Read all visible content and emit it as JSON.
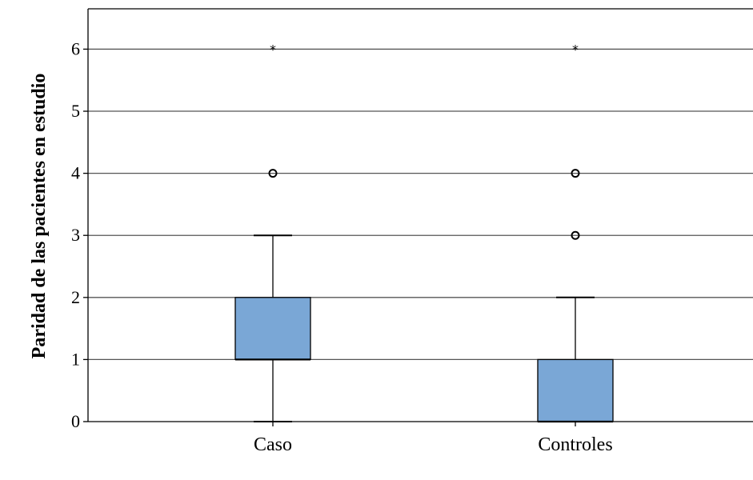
{
  "chart_data": {
    "type": "boxplot",
    "title": "",
    "xlabel": "",
    "ylabel": "Paridad de las pacientes en estudio",
    "ylim": [
      0,
      6.65
    ],
    "yticks": [
      0,
      1,
      2,
      3,
      4,
      5,
      6
    ],
    "grid": true,
    "categories": [
      "Caso",
      "Controles"
    ],
    "boxes": [
      {
        "category": "Caso",
        "whisker_low": 0,
        "q1": 1,
        "median": 1,
        "q3": 2,
        "whisker_high": 3,
        "outliers": [
          4
        ],
        "extremes": [
          6
        ]
      },
      {
        "category": "Controles",
        "whisker_low": 0,
        "q1": 0,
        "median": 0,
        "q3": 1,
        "whisker_high": 2,
        "outliers": [
          3,
          4
        ],
        "extremes": [
          6
        ]
      }
    ],
    "colors": {
      "box": "#7aa7d6",
      "grid": "#555555"
    },
    "extreme_marker": "*"
  }
}
